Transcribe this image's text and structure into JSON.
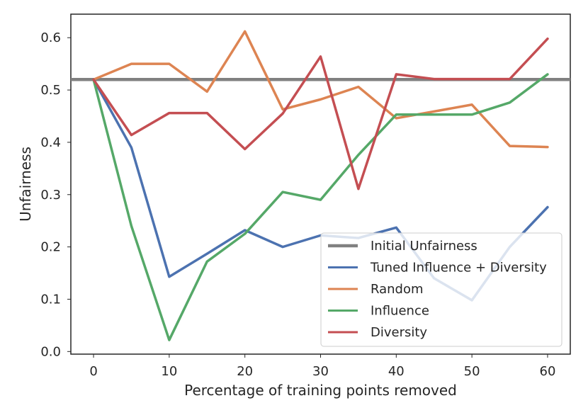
{
  "chart_data": {
    "type": "line",
    "title": "",
    "xlabel": "Percentage of training points removed",
    "ylabel": "Unfairness",
    "xlim": [
      -3,
      63
    ],
    "ylim": [
      -0.005,
      0.645
    ],
    "xticks": [
      0,
      10,
      20,
      30,
      40,
      50,
      60
    ],
    "xtick_labels": [
      "0",
      "10",
      "20",
      "30",
      "40",
      "50",
      "60"
    ],
    "yticks": [
      0.0,
      0.1,
      0.2,
      0.3,
      0.4,
      0.5,
      0.6
    ],
    "ytick_labels": [
      "0.0",
      "0.1",
      "0.2",
      "0.3",
      "0.4",
      "0.5",
      "0.6"
    ],
    "grid": false,
    "legend_position": "lower-right",
    "x": [
      0,
      5,
      10,
      15,
      20,
      25,
      30,
      35,
      40,
      45,
      50,
      55,
      60
    ],
    "baseline": {
      "name": "Initial Unfairness",
      "value": 0.52,
      "color": "#808080"
    },
    "series": [
      {
        "name": "Tuned Influence + Diversity",
        "color": "#4c72b0",
        "values": [
          0.52,
          0.39,
          0.143,
          0.187,
          0.232,
          0.2,
          0.222,
          0.217,
          0.237,
          0.14,
          0.098,
          0.2,
          0.276
        ]
      },
      {
        "name": "Random",
        "color": "#dd8452",
        "values": [
          0.52,
          0.55,
          0.55,
          0.497,
          0.612,
          0.463,
          0.482,
          0.506,
          0.446,
          0.459,
          0.472,
          0.393,
          0.391
        ]
      },
      {
        "name": "Influence",
        "color": "#55a868",
        "values": [
          0.52,
          0.24,
          0.022,
          0.172,
          0.225,
          0.305,
          0.29,
          0.376,
          0.453,
          0.453,
          0.453,
          0.476,
          0.53
        ]
      },
      {
        "name": "Diversity",
        "color": "#c44e52",
        "values": [
          0.52,
          0.414,
          0.456,
          0.456,
          0.387,
          0.455,
          0.564,
          0.311,
          0.53,
          0.521,
          0.521,
          0.521,
          0.598
        ]
      }
    ]
  }
}
